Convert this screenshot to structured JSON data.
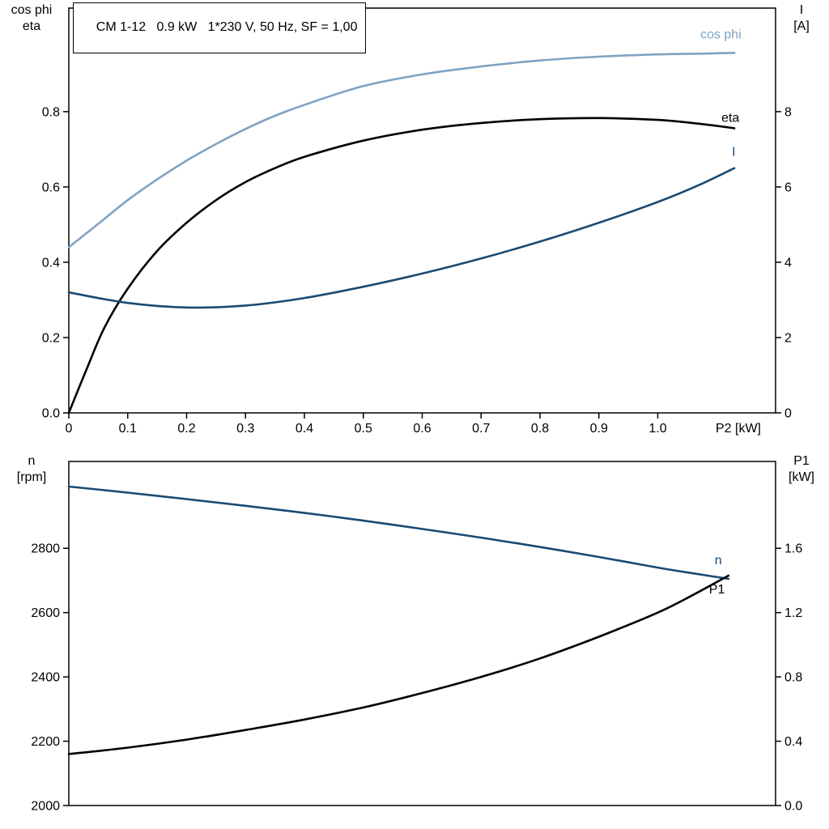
{
  "title_box": {
    "text": "CM 1-12   0.9 kW   1*230 V, 50 Hz, SF = 1,00"
  },
  "axis_corner_labels": {
    "top_chart_left": [
      "cos phi",
      "eta"
    ],
    "top_chart_right": [
      "I",
      "[A]"
    ],
    "bottom_chart_left": [
      "n",
      "[rpm]"
    ],
    "bottom_chart_right": [
      "P1",
      "[kW]"
    ]
  },
  "colors": {
    "light_blue": "#7fa3c4",
    "dark_blue": "#1a4a73",
    "black": "#000000",
    "frame": "#000000",
    "background": "#ffffff"
  },
  "chart_data": [
    {
      "id": "top",
      "type": "line",
      "title": "CM 1-12   0.9 kW   1*230 V, 50 Hz, SF = 1,00",
      "grid": false,
      "legend_position": "curve-end-labels",
      "x_axis": {
        "label": "P2 [kW]",
        "min": 0,
        "max": 1.2,
        "ticks": [
          0,
          0.1,
          0.2,
          0.3,
          0.4,
          0.5,
          0.6,
          0.7,
          0.8,
          0.9,
          1.0
        ],
        "tick_labels": [
          "0",
          "0.1",
          "0.2",
          "0.3",
          "0.4",
          "0.5",
          "0.6",
          "0.7",
          "0.8",
          "0.9",
          "1.0"
        ]
      },
      "y_left": {
        "label": "cos phi / eta",
        "min": 0,
        "max": 1.075,
        "ticks": [
          0.0,
          0.2,
          0.4,
          0.6,
          0.8
        ],
        "tick_labels": [
          "0.0",
          "0.2",
          "0.4",
          "0.6",
          "0.8"
        ]
      },
      "y_right": {
        "label": "I [A]",
        "min": 0,
        "max": 10.75,
        "ticks": [
          0,
          2,
          4,
          6,
          8
        ],
        "tick_labels": [
          "0",
          "2",
          "4",
          "6",
          "8"
        ]
      },
      "series": [
        {
          "name": "cos phi",
          "axis": "left",
          "color": "#7fa3c4",
          "x": [
            0,
            0.05,
            0.1,
            0.15,
            0.2,
            0.25,
            0.3,
            0.35,
            0.4,
            0.5,
            0.6,
            0.7,
            0.8,
            0.9,
            1.0,
            1.07,
            1.13
          ],
          "y": [
            0.44,
            0.502,
            0.565,
            0.62,
            0.67,
            0.714,
            0.754,
            0.789,
            0.818,
            0.868,
            0.899,
            0.92,
            0.936,
            0.946,
            0.952,
            0.954,
            0.956
          ]
        },
        {
          "name": "eta",
          "axis": "left",
          "color": "#000000",
          "x": [
            0,
            0.03,
            0.06,
            0.1,
            0.15,
            0.2,
            0.25,
            0.3,
            0.35,
            0.4,
            0.5,
            0.6,
            0.7,
            0.8,
            0.9,
            1.0,
            1.07,
            1.13
          ],
          "y": [
            0,
            0.115,
            0.225,
            0.33,
            0.43,
            0.505,
            0.565,
            0.613,
            0.65,
            0.68,
            0.723,
            0.752,
            0.77,
            0.78,
            0.783,
            0.778,
            0.768,
            0.756
          ]
        },
        {
          "name": "I",
          "axis": "right",
          "color": "#1a4a73",
          "x": [
            0,
            0.1,
            0.2,
            0.3,
            0.4,
            0.5,
            0.6,
            0.7,
            0.8,
            0.9,
            1.0,
            1.07,
            1.13
          ],
          "y": [
            3.2,
            2.92,
            2.8,
            2.85,
            3.05,
            3.35,
            3.7,
            4.1,
            4.55,
            5.05,
            5.6,
            6.05,
            6.5
          ]
        }
      ]
    },
    {
      "id": "bottom",
      "type": "line",
      "title": "",
      "grid": false,
      "legend_position": "curve-end-labels",
      "x_axis": {
        "label": "",
        "min": 0,
        "max": 1.2,
        "ticks": [],
        "tick_labels": []
      },
      "y_left": {
        "label": "n [rpm]",
        "min": 2000,
        "max": 3070,
        "ticks": [
          2000,
          2200,
          2400,
          2600,
          2800
        ],
        "tick_labels": [
          "2000",
          "2200",
          "2400",
          "2600",
          "2800"
        ]
      },
      "y_right": {
        "label": "P1 [kW]",
        "min": 0,
        "max": 2.14,
        "ticks": [
          0.0,
          0.4,
          0.8,
          1.2,
          1.6
        ],
        "tick_labels": [
          "0.0",
          "0.4",
          "0.8",
          "1.2",
          "1.6"
        ]
      },
      "series": [
        {
          "name": "n",
          "axis": "left",
          "color": "#1a4a73",
          "x": [
            0,
            0.1,
            0.2,
            0.3,
            0.4,
            0.5,
            0.6,
            0.7,
            0.8,
            0.9,
            1.0,
            1.06,
            1.12
          ],
          "y": [
            2992,
            2973,
            2953,
            2932,
            2910,
            2886,
            2860,
            2833,
            2804,
            2773,
            2740,
            2722,
            2705
          ]
        },
        {
          "name": "P1",
          "axis": "right",
          "color": "#000000",
          "x": [
            0,
            0.1,
            0.2,
            0.3,
            0.4,
            0.5,
            0.6,
            0.7,
            0.8,
            0.9,
            1.0,
            1.06,
            1.12
          ],
          "y": [
            0.32,
            0.36,
            0.41,
            0.47,
            0.535,
            0.61,
            0.7,
            0.8,
            0.915,
            1.05,
            1.2,
            1.31,
            1.43
          ]
        }
      ]
    }
  ]
}
